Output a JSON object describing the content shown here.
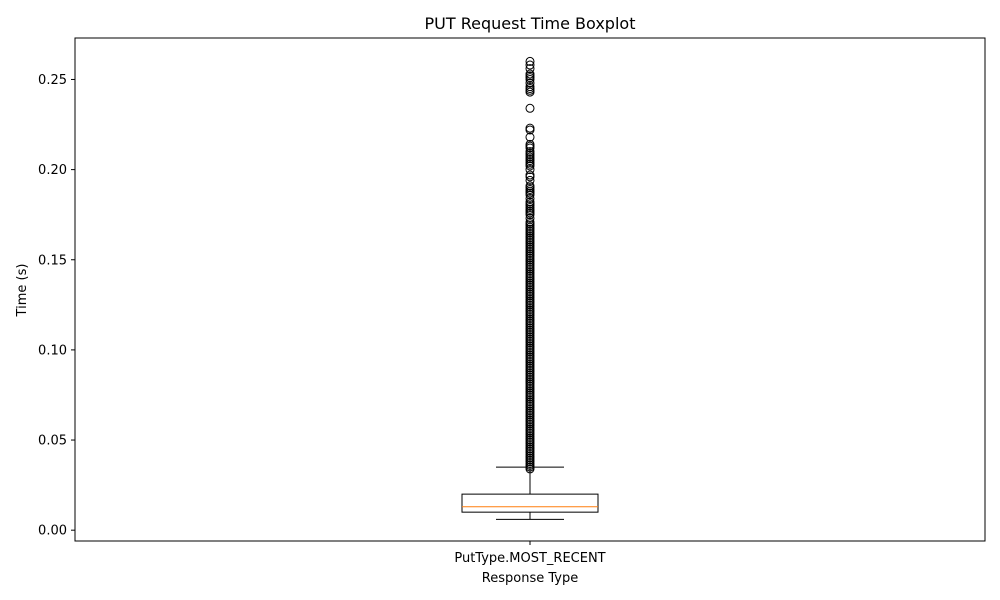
{
  "chart_data": {
    "type": "boxplot",
    "title": "PUT Request Time Boxplot",
    "xlabel": "Response Type",
    "ylabel": "Time (s)",
    "ylim": [
      -0.006,
      0.273
    ],
    "yticks": [
      0.0,
      0.05,
      0.1,
      0.15,
      0.2,
      0.25
    ],
    "ytick_labels": [
      "0.00",
      "0.05",
      "0.10",
      "0.15",
      "0.20",
      "0.25"
    ],
    "categories": [
      "PutType.MOST_RECENT"
    ],
    "grid": false,
    "boxes": [
      {
        "name": "PutType.MOST_RECENT",
        "whisker_low": 0.006,
        "q1": 0.01,
        "median": 0.013,
        "q3": 0.02,
        "whisker_high": 0.035,
        "outliers": [
          0.034,
          0.035,
          0.036,
          0.037,
          0.038,
          0.039,
          0.04,
          0.041,
          0.042,
          0.043,
          0.044,
          0.045,
          0.046,
          0.047,
          0.048,
          0.049,
          0.05,
          0.051,
          0.052,
          0.053,
          0.054,
          0.055,
          0.056,
          0.057,
          0.058,
          0.059,
          0.06,
          0.061,
          0.062,
          0.063,
          0.064,
          0.065,
          0.066,
          0.067,
          0.068,
          0.069,
          0.07,
          0.071,
          0.072,
          0.073,
          0.074,
          0.075,
          0.076,
          0.077,
          0.078,
          0.079,
          0.08,
          0.081,
          0.082,
          0.083,
          0.084,
          0.085,
          0.086,
          0.087,
          0.088,
          0.089,
          0.09,
          0.091,
          0.092,
          0.093,
          0.094,
          0.095,
          0.096,
          0.097,
          0.098,
          0.099,
          0.1,
          0.101,
          0.102,
          0.103,
          0.104,
          0.105,
          0.106,
          0.107,
          0.108,
          0.109,
          0.11,
          0.111,
          0.112,
          0.113,
          0.114,
          0.115,
          0.116,
          0.117,
          0.118,
          0.119,
          0.12,
          0.121,
          0.122,
          0.123,
          0.124,
          0.125,
          0.126,
          0.127,
          0.128,
          0.129,
          0.13,
          0.131,
          0.132,
          0.133,
          0.134,
          0.135,
          0.136,
          0.137,
          0.138,
          0.139,
          0.14,
          0.141,
          0.142,
          0.143,
          0.144,
          0.145,
          0.146,
          0.147,
          0.148,
          0.149,
          0.15,
          0.151,
          0.152,
          0.153,
          0.154,
          0.155,
          0.156,
          0.157,
          0.158,
          0.159,
          0.16,
          0.161,
          0.162,
          0.163,
          0.164,
          0.165,
          0.166,
          0.167,
          0.168,
          0.169,
          0.17,
          0.171,
          0.173,
          0.175,
          0.176,
          0.177,
          0.178,
          0.179,
          0.18,
          0.181,
          0.182,
          0.184,
          0.186,
          0.187,
          0.188,
          0.189,
          0.19,
          0.191,
          0.194,
          0.196,
          0.197,
          0.2,
          0.202,
          0.203,
          0.204,
          0.205,
          0.206,
          0.207,
          0.208,
          0.209,
          0.21,
          0.212,
          0.213,
          0.214,
          0.218,
          0.222,
          0.223,
          0.234,
          0.243,
          0.244,
          0.245,
          0.246,
          0.248,
          0.25,
          0.251,
          0.252,
          0.253,
          0.256,
          0.258,
          0.26
        ]
      }
    ],
    "colors": {
      "box_edge": "#000000",
      "median": "#ff7f0e",
      "outlier_edge": "#000000",
      "axes": "#000000"
    }
  }
}
